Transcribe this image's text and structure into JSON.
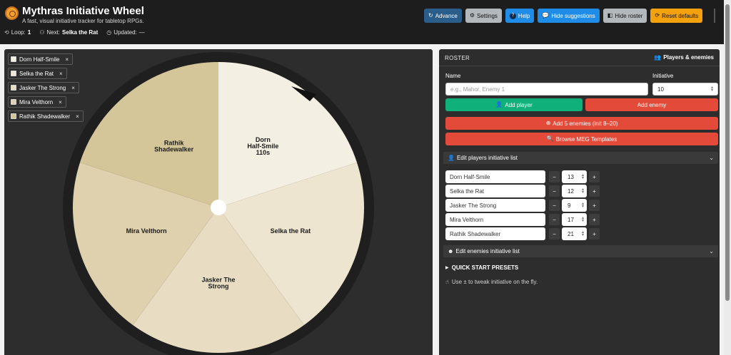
{
  "app": {
    "title": "Mythras Initiative Wheel",
    "subtitle": "A fast, visual initiative tracker for tabletop RPGs.",
    "loop_label": "Loop:",
    "loop_value": "1",
    "next_label": "Next:",
    "next_value": "Selka the Rat",
    "updated_label": "Updated:",
    "updated_value": "—"
  },
  "toolbar": {
    "advance": "Advance",
    "settings": "Settings",
    "help": "Help",
    "hide_suggestions": "Hide suggestions",
    "hide_roster": "Hide roster",
    "reset_defaults": "Reset defaults"
  },
  "chips": [
    {
      "label": "Dorn Half-Smile",
      "color": "#f4efe3"
    },
    {
      "label": "Selka the Rat",
      "color": "#efe7d4"
    },
    {
      "label": "Jasker The Strong",
      "color": "#e8dcc0"
    },
    {
      "label": "Mira Velthorn",
      "color": "#dfd1b1"
    },
    {
      "label": "Rathik Shadewalker",
      "color": "#d3c597"
    }
  ],
  "wheel": {
    "segments": [
      {
        "lines": [
          "Dorn",
          "Half-Smile",
          "110s"
        ],
        "color": "#f4efe3"
      },
      {
        "lines": [
          "Selka the Rat"
        ],
        "color": "#eee5d0"
      },
      {
        "lines": [
          "Jasker The",
          "Strong"
        ],
        "color": "#e8ddc3"
      },
      {
        "lines": [
          "Mira Velthorn"
        ],
        "color": "#dfd1ae"
      },
      {
        "lines": [
          "Rathik",
          "Shadewalker"
        ],
        "color": "#d4c699"
      }
    ],
    "pointer_color": "#111111",
    "rim_color": "#1f1f1f"
  },
  "roster": {
    "title": "ROSTER",
    "players_enemies": "Players & enemies",
    "name_label": "Name",
    "name_placeholder": "e.g., Mahor, Enemy 1",
    "initiative_label": "Initiative",
    "initiative_value": "10",
    "add_player": "Add player",
    "add_enemy": "Add enemy",
    "add_5_enemies": "Add 5 enemies (init 8–20)",
    "browse_meg": "Browse MEG Templates",
    "edit_players": "Edit players initiative list",
    "edit_enemies": "Edit enemies initiative list",
    "quick_start": "QUICK START PRESETS",
    "hint": "Use ± to tweak initiative on the fly."
  },
  "players": [
    {
      "name": "Dorn Half-Smile",
      "init": "13"
    },
    {
      "name": "Selka the Rat",
      "init": "12"
    },
    {
      "name": "Jasker The Strong",
      "init": "9"
    },
    {
      "name": "Mira Velthorn",
      "init": "17"
    },
    {
      "name": "Rathik Shadewalker",
      "init": "21"
    }
  ],
  "symbols": {
    "minus": "−",
    "plus": "+",
    "x": "×",
    "chevron": "⌄",
    "triangle": "▶"
  }
}
